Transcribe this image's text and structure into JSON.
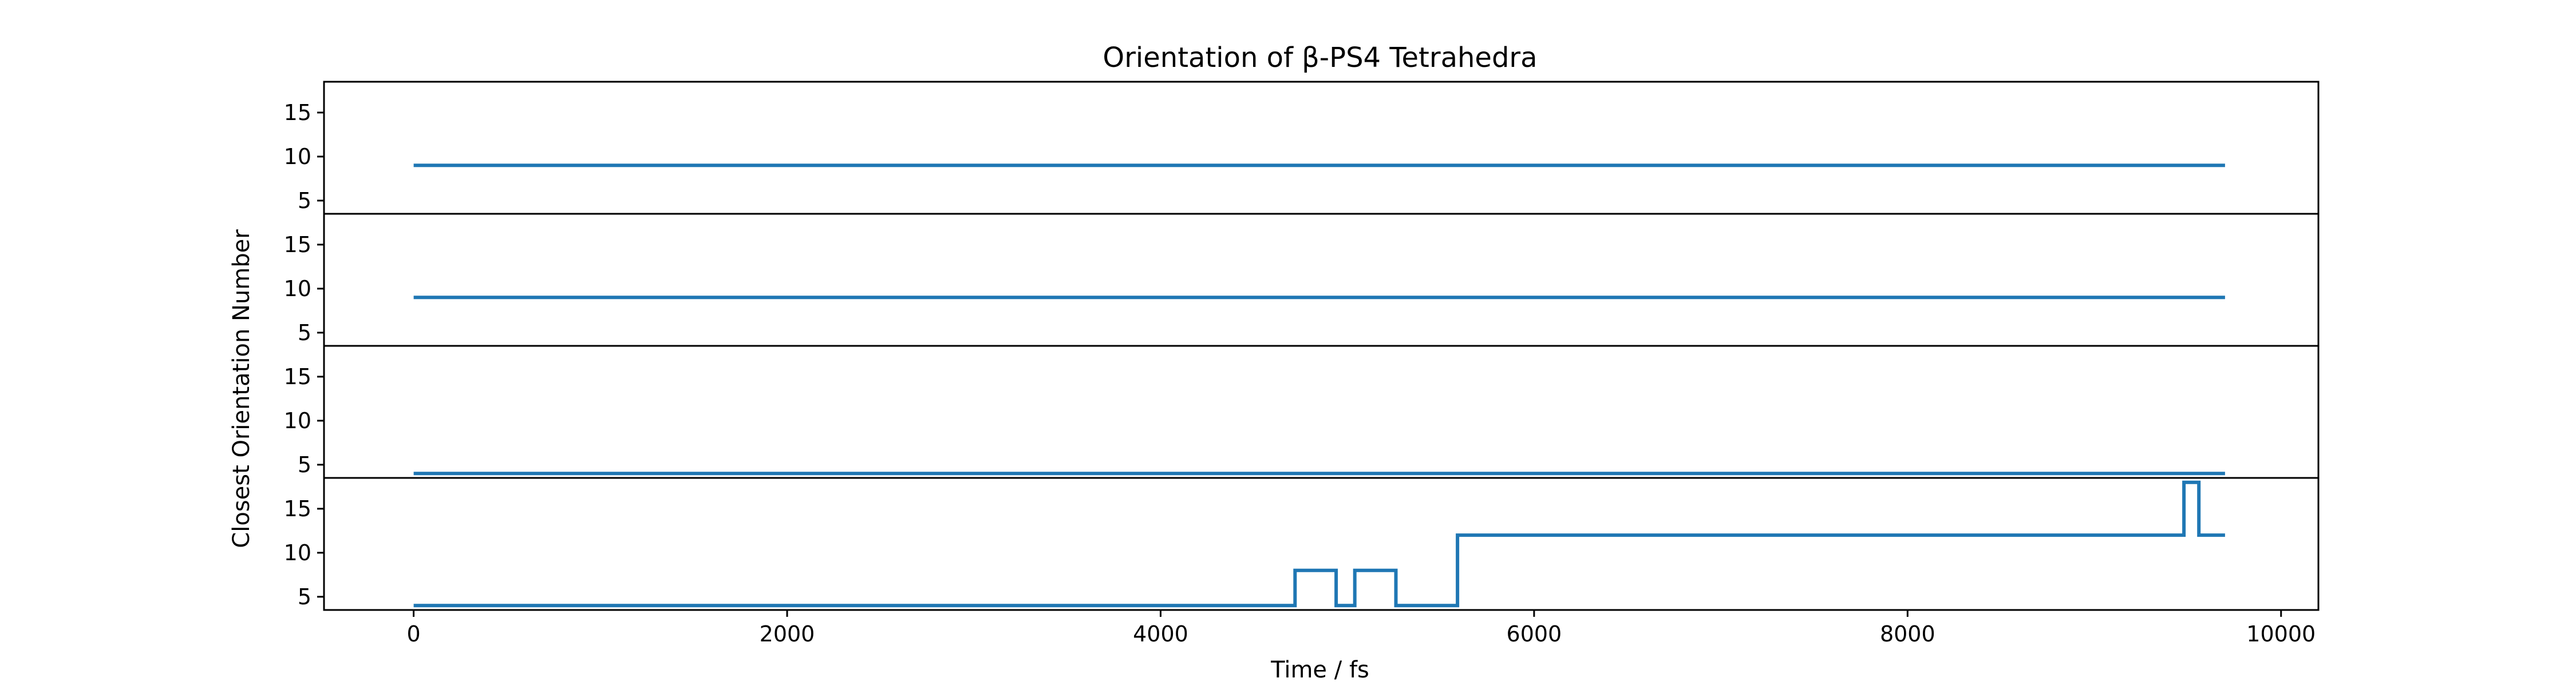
{
  "chart_data": {
    "type": "line",
    "title": "Orientation of β-PS4 Tetrahedra",
    "xlabel": "Time / fs",
    "ylabel": "Closest Orientation Number",
    "xlim": [
      -480,
      10200
    ],
    "ylim": [
      3.5,
      18.5
    ],
    "xticks": [
      0,
      2000,
      4000,
      6000,
      8000,
      10000
    ],
    "xtick_labels": [
      "0",
      "2000",
      "4000",
      "6000",
      "8000",
      "10000"
    ],
    "yticks": [
      5,
      10,
      15
    ],
    "ytick_labels": [
      "5",
      "10",
      "15"
    ],
    "grid": false,
    "line_color": "#1f77b4",
    "panels": [
      {
        "x": [
          0,
          9700
        ],
        "y": [
          9,
          9
        ]
      },
      {
        "x": [
          0,
          9700
        ],
        "y": [
          9,
          9
        ]
      },
      {
        "x": [
          0,
          9700
        ],
        "y": [
          4,
          4
        ]
      },
      {
        "x": [
          0,
          4720,
          4720,
          4940,
          4940,
          5040,
          5040,
          5260,
          5260,
          5590,
          5590,
          9480,
          9480,
          9560,
          9560,
          9700
        ],
        "y": [
          4,
          4,
          8,
          8,
          4,
          4,
          8,
          8,
          4,
          4,
          12,
          12,
          18,
          18,
          12,
          12
        ]
      }
    ]
  }
}
